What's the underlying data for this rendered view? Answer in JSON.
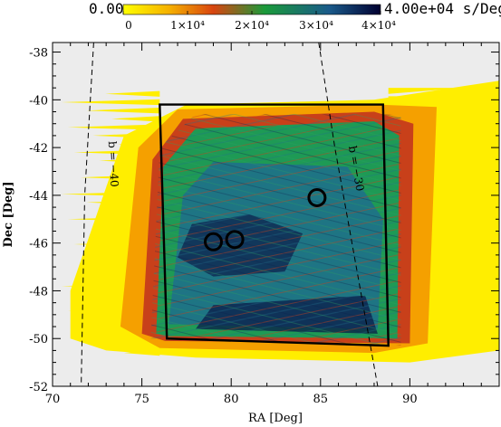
{
  "chart_data": {
    "type": "heatmap",
    "title": "",
    "xlabel": "RA [Deg]",
    "ylabel": "Dec [Deg]",
    "xlim": [
      70,
      95
    ],
    "ylim": [
      -52,
      -37.6
    ],
    "x_ticks": [
      70,
      75,
      80,
      85,
      90
    ],
    "y_ticks": [
      -52,
      -50,
      -48,
      -46,
      -44,
      -42,
      -40,
      -38
    ],
    "x_axis_reversed": false,
    "colorbar": {
      "min_label": "0.00",
      "max_label": "4.00e+04 s/Deg",
      "unit": "s/Deg",
      "ticks": [
        {
          "value": 0,
          "label": "0"
        },
        {
          "value": 10000,
          "label": "1×10⁴"
        },
        {
          "value": 20000,
          "label": "2×10⁴"
        },
        {
          "value": 30000,
          "label": "3×10⁴"
        },
        {
          "value": 40000,
          "label": "4×10⁴"
        }
      ],
      "range": [
        0,
        40000
      ],
      "colors": [
        "#ffff00",
        "#f5a000",
        "#d43a10",
        "#1a9a3a",
        "#1a5a8a",
        "#0a1a40"
      ]
    },
    "coverage_footprint": [
      [
        76.0,
        -40.2
      ],
      [
        88.5,
        -40.2
      ],
      [
        88.8,
        -50.3
      ],
      [
        76.4,
        -50.0
      ]
    ],
    "outer_coverage": [
      [
        71.0,
        -48.0
      ],
      [
        74.0,
        -41.5
      ],
      [
        77.5,
        -40.2
      ],
      [
        88.0,
        -40.0
      ],
      [
        95.0,
        -39.2
      ],
      [
        95.0,
        -50.5
      ],
      [
        90.0,
        -51.0
      ],
      [
        78.0,
        -50.8
      ],
      [
        73.0,
        -50.5
      ],
      [
        71.0,
        -50.0
      ]
    ],
    "contour_lines": [
      {
        "label": "b = −40",
        "points": [
          [
            72.3,
            -37.6
          ],
          [
            71.8,
            -44.0
          ],
          [
            71.6,
            -52.0
          ]
        ]
      },
      {
        "label": "b = −30",
        "points": [
          [
            84.9,
            -37.6
          ],
          [
            85.8,
            -42.0
          ],
          [
            88.2,
            -52.0
          ]
        ]
      }
    ],
    "circles": [
      {
        "ra": 84.8,
        "dec": -44.1
      },
      {
        "ra": 79.0,
        "dec": -45.95
      },
      {
        "ra": 80.2,
        "dec": -45.85
      }
    ]
  },
  "colors": {
    "background": "#ffffff",
    "plot_bg": "#ececec",
    "yellow": "#ffee00",
    "orange": "#f5a000",
    "red": "#c8401a",
    "green": "#1e9a55",
    "teal": "#1f6f8c",
    "navy": "#0b1c4a"
  }
}
